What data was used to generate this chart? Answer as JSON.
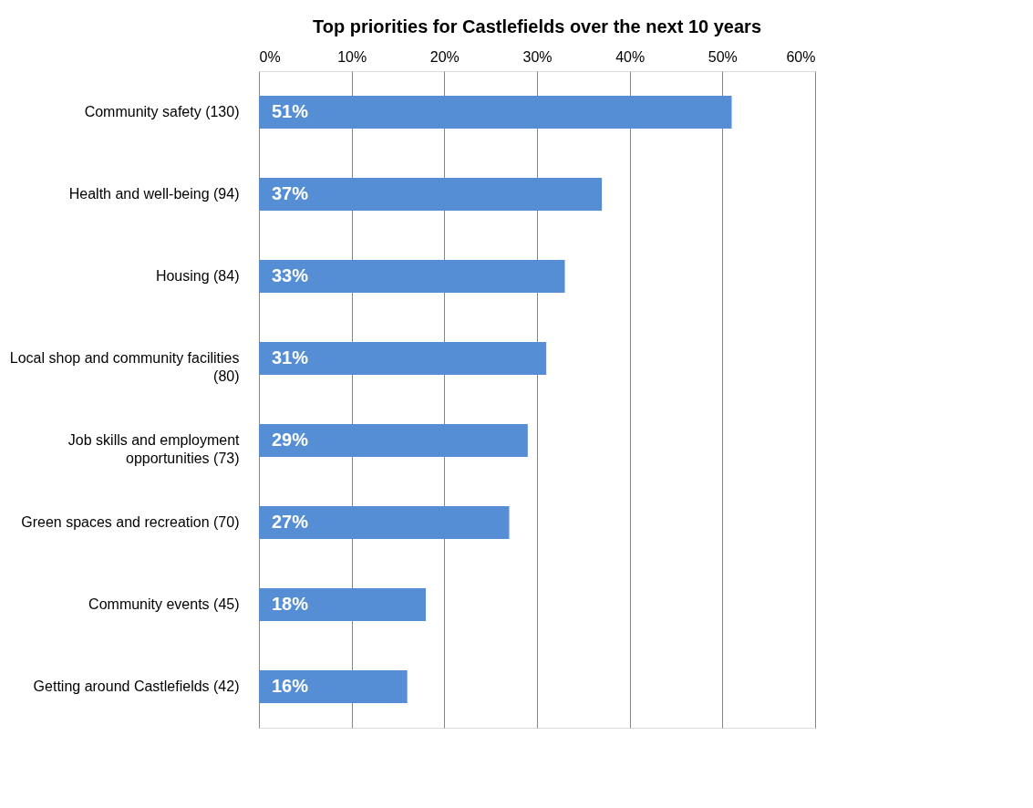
{
  "chart_data": {
    "type": "bar",
    "orientation": "horizontal",
    "title": "Top priorities for Castlefields over the next 10 years",
    "categories": [
      "Community safety (130)",
      "Health and well-being (94)",
      "Housing (84)",
      "Local shop and community facilities\n(80)",
      "Job skills and employment\nopportunities (73)",
      "Green spaces and recreation (70)",
      "Community events (45)",
      "Getting around Castlefields (42)"
    ],
    "values": [
      51,
      37,
      33,
      31,
      29,
      27,
      18,
      16
    ],
    "value_labels": [
      "51%",
      "37%",
      "33%",
      "31%",
      "29%",
      "27%",
      "18%",
      "16%"
    ],
    "color": "#558ed5",
    "xlim": [
      0,
      60
    ],
    "xticks": [
      {
        "value": 0,
        "label": "0%"
      },
      {
        "value": 10,
        "label": "10%"
      },
      {
        "value": 20,
        "label": "20%"
      },
      {
        "value": 30,
        "label": "30%"
      },
      {
        "value": 40,
        "label": "40%"
      },
      {
        "value": 50,
        "label": "50%"
      },
      {
        "value": 60,
        "label": "60%"
      }
    ],
    "grid": "x"
  }
}
